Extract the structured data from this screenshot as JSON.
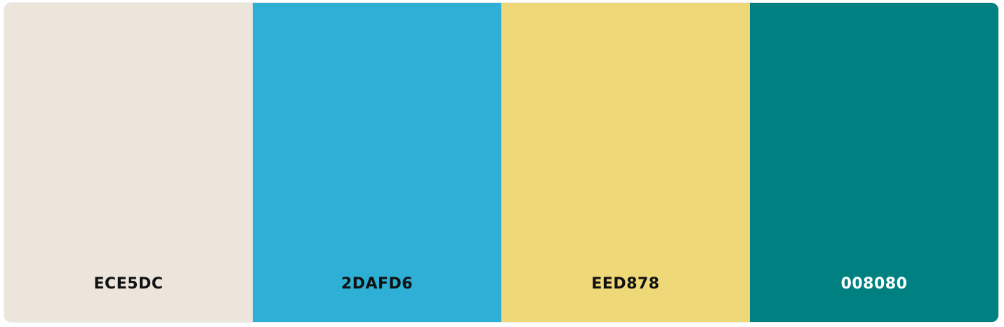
{
  "palette": {
    "swatches": [
      {
        "hex": "ECE5DC",
        "color": "#ECE5DC",
        "text_color": "#111111"
      },
      {
        "hex": "2DAFD6",
        "color": "#2DAFD6",
        "text_color": "#111111"
      },
      {
        "hex": "EED878",
        "color": "#EED878",
        "text_color": "#111111"
      },
      {
        "hex": "008080",
        "color": "#008080",
        "text_color": "#ffffff"
      }
    ]
  }
}
